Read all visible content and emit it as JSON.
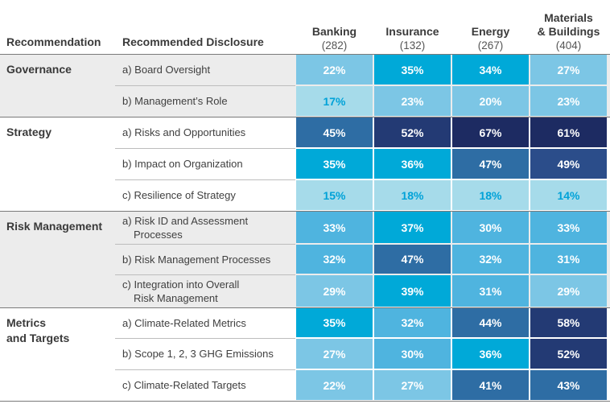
{
  "header": {
    "recommendation": "Recommendation",
    "disclosure": "Recommended Disclosure"
  },
  "chart_data": {
    "type": "heatmap",
    "sectors": [
      {
        "name": "Banking",
        "count": "(282)"
      },
      {
        "name": "Insurance",
        "count": "(132)"
      },
      {
        "name": "Energy",
        "count": "(267)"
      },
      {
        "name": "Materials & Buildings",
        "name_lines": [
          "Materials",
          "& Buildings"
        ],
        "count": "(404)"
      }
    ],
    "groups": [
      {
        "name": "Governance",
        "name_lines": [
          "Governance"
        ],
        "rows": [
          {
            "label": "a) Board Oversight",
            "label_lines": [
              "a) Board Oversight"
            ],
            "values": [
              22,
              35,
              34,
              27
            ]
          },
          {
            "label": "b) Management's Role",
            "label_lines": [
              "b) Management’s Role"
            ],
            "values": [
              17,
              23,
              20,
              23
            ]
          }
        ]
      },
      {
        "name": "Strategy",
        "name_lines": [
          "Strategy"
        ],
        "rows": [
          {
            "label": "a) Risks and Opportunities",
            "label_lines": [
              "a) Risks and Opportunities"
            ],
            "values": [
              45,
              52,
              67,
              61
            ]
          },
          {
            "label": "b) Impact on Organization",
            "label_lines": [
              "b) Impact on Organization"
            ],
            "values": [
              35,
              36,
              47,
              49
            ]
          },
          {
            "label": "c) Resilience of Strategy",
            "label_lines": [
              "c) Resilience of Strategy"
            ],
            "values": [
              15,
              18,
              18,
              14
            ]
          }
        ]
      },
      {
        "name": "Risk Management",
        "name_lines": [
          "Risk Management"
        ],
        "rows": [
          {
            "label": "a) Risk ID and Assessment Processes",
            "label_lines": [
              "a) Risk ID and Assessment",
              "Processes"
            ],
            "values": [
              33,
              37,
              30,
              33
            ]
          },
          {
            "label": "b) Risk Management Processes",
            "label_lines": [
              "b) Risk Management Processes"
            ],
            "values": [
              32,
              47,
              32,
              31
            ]
          },
          {
            "label": "c) Integration into Overall Risk Management",
            "label_lines": [
              "c) Integration into Overall",
              "Risk Management"
            ],
            "values": [
              29,
              39,
              31,
              29
            ]
          }
        ]
      },
      {
        "name": "Metrics and Targets",
        "name_lines": [
          "Metrics",
          "and Targets"
        ],
        "rows": [
          {
            "label": "a) Climate-Related Metrics",
            "label_lines": [
              "a) Climate-Related Metrics"
            ],
            "values": [
              35,
              32,
              44,
              58
            ]
          },
          {
            "label": "b) Scope 1, 2, 3 GHG Emissions",
            "label_lines": [
              "b) Scope 1, 2, 3 GHG Emissions"
            ],
            "values": [
              27,
              30,
              36,
              52
            ]
          },
          {
            "label": "c) Climate-Related Targets",
            "label_lines": [
              "c) Climate-Related Targets"
            ],
            "values": [
              22,
              27,
              41,
              43
            ]
          }
        ]
      }
    ],
    "value_suffix": "%",
    "colors": {
      "very_light": "#a6dbea",
      "light": "#7cc6e5",
      "medium_light": "#4fb4df",
      "cyan": "#00a9d8",
      "medium": "#2e6da4",
      "dark": "#2b4d8a",
      "darker": "#233a74",
      "darkest": "#1d2b62",
      "text_dark": "#ffffff",
      "text_light": "#00a2d8"
    }
  }
}
